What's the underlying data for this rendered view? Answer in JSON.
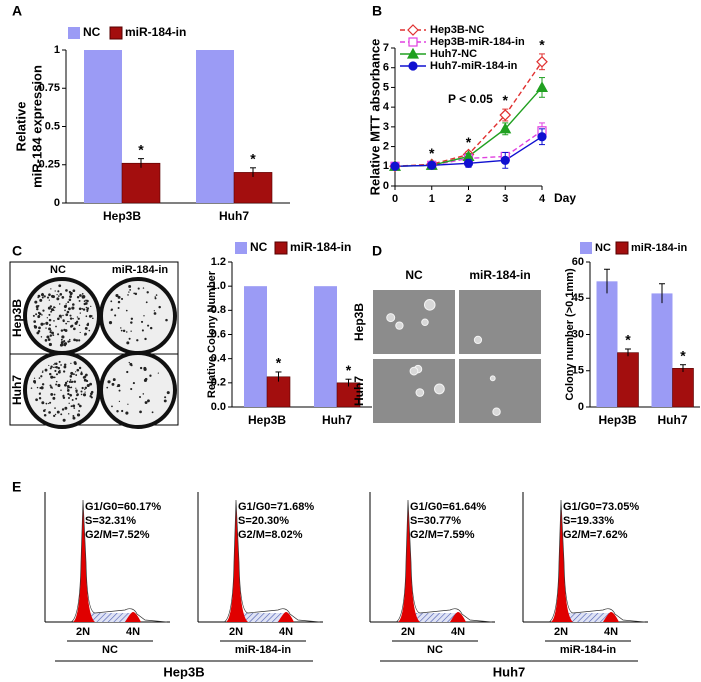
{
  "panel_labels": [
    "A",
    "B",
    "C",
    "D",
    "E"
  ],
  "chart_data": [
    {
      "type": "bar",
      "ylabel": [
        "Relative",
        "miR-184 expression"
      ],
      "categories": [
        "Hep3B",
        "Huh7"
      ],
      "series": [
        {
          "name": "NC",
          "color": "#9b9bf5",
          "values": [
            1,
            1
          ]
        },
        {
          "name": "miR-184-in",
          "color": "#a30e0e",
          "values": [
            0.26,
            0.2
          ],
          "errors": [
            0.03,
            0.03
          ],
          "significance": [
            "*",
            "*"
          ]
        }
      ],
      "ylim": [
        0,
        1
      ],
      "yticks": [
        0,
        0.25,
        0.5,
        0.75,
        1
      ]
    },
    {
      "type": "line",
      "ylabel": "Relative MTT absorbance",
      "xlabel": "Day",
      "annotation": "P < 0.05",
      "x": [
        0,
        1,
        2,
        3,
        4
      ],
      "series": [
        {
          "name": "Hep3B-NC",
          "color": "#e03030",
          "marker": "diamond",
          "filled": false,
          "dashed": true,
          "values": [
            1,
            1.1,
            1.6,
            3.6,
            6.3
          ],
          "errors": [
            0.05,
            0.1,
            0.15,
            0.3,
            0.4
          ]
        },
        {
          "name": "Hep3B-miR-184-in",
          "color": "#e040e0",
          "marker": "square",
          "filled": false,
          "dashed": true,
          "values": [
            1,
            1.05,
            1.4,
            1.5,
            2.8
          ],
          "errors": [
            0.05,
            0.1,
            0.15,
            0.2,
            0.4
          ]
        },
        {
          "name": "Huh7-NC",
          "color": "#20a020",
          "marker": "triangle",
          "filled": true,
          "dashed": false,
          "values": [
            1,
            1.05,
            1.5,
            2.9,
            5.0
          ],
          "errors": [
            0.05,
            0.1,
            0.15,
            0.3,
            0.5
          ]
        },
        {
          "name": "Huh7-miR-184-in",
          "color": "#1010d0",
          "marker": "circle",
          "filled": true,
          "dashed": false,
          "values": [
            1,
            1.05,
            1.15,
            1.3,
            2.5
          ],
          "errors": [
            0.05,
            0.1,
            0.2,
            0.4,
            0.4
          ]
        }
      ],
      "significance": [
        null,
        "*",
        "*",
        "*",
        "*"
      ],
      "xlim": [
        0,
        4
      ],
      "xticks": [
        0,
        1,
        2,
        3,
        4
      ],
      "ylim": [
        0,
        7
      ],
      "yticks": [
        0,
        1,
        2,
        3,
        4,
        5,
        6,
        7
      ]
    },
    {
      "type": "bar",
      "ylabel": "Relative Colony Number",
      "categories": [
        "Hep3B",
        "Huh7"
      ],
      "series": [
        {
          "name": "NC",
          "color": "#9b9bf5",
          "values": [
            1,
            1
          ]
        },
        {
          "name": "miR-184-in",
          "color": "#a30e0e",
          "values": [
            0.25,
            0.2
          ],
          "errors": [
            0.04,
            0.03
          ],
          "significance": [
            "*",
            "*"
          ]
        }
      ],
      "ylim": [
        0,
        1.2
      ],
      "yticks": [
        {
          "value": 0,
          "label": "0.0"
        },
        0.2,
        0.4,
        0.6,
        0.8,
        {
          "value": 1,
          "label": "1.0"
        },
        1.2
      ]
    },
    {
      "type": "bar",
      "ylabel": "Colony number (>0.1mm)",
      "categories": [
        "Hep3B",
        "Huh7"
      ],
      "series": [
        {
          "name": "NC",
          "color": "#9b9bf5",
          "values": [
            52,
            47
          ],
          "errors": [
            5,
            4
          ]
        },
        {
          "name": "miR-184-in",
          "color": "#a30e0e",
          "values": [
            22.5,
            16
          ],
          "errors": [
            1.5,
            1.5
          ],
          "significance": [
            "*",
            "*"
          ]
        }
      ],
      "ylim": [
        0,
        60
      ],
      "yticks": [
        0,
        15,
        30,
        45,
        60
      ]
    }
  ],
  "colony_images": {
    "plates": {
      "columns": [
        "NC",
        "miR-184-in"
      ],
      "rows": [
        "Hep3B",
        "Huh7"
      ]
    },
    "soft_agar": {
      "columns": [
        "NC",
        "miR-184-in"
      ],
      "rows": [
        "Hep3B",
        "Huh7"
      ]
    }
  },
  "cell_cycle": {
    "peaks": [
      "2N",
      "4N"
    ],
    "groups": [
      {
        "cell_line": "Hep3B",
        "samples": [
          {
            "condition": "NC",
            "stats": [
              "G1/G0=60.17%",
              "S=32.31%",
              "G2/M=7.52%"
            ]
          },
          {
            "condition": "miR-184-in",
            "stats": [
              "G1/G0=71.68%",
              "S=20.30%",
              "G2/M=8.02%"
            ]
          }
        ]
      },
      {
        "cell_line": "Huh7",
        "samples": [
          {
            "condition": "NC",
            "stats": [
              "G1/G0=61.64%",
              "S=30.77%",
              "G2/M=7.59%"
            ]
          },
          {
            "condition": "miR-184-in",
            "stats": [
              "G1/G0=73.05%",
              "S=19.33%",
              "G2/M=7.62%"
            ]
          }
        ]
      }
    ]
  }
}
